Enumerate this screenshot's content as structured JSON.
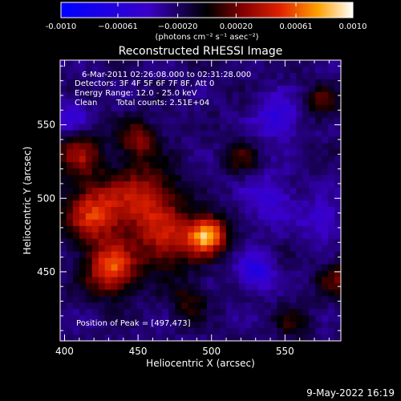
{
  "chart_data": {
    "type": "heatmap",
    "title": "Reconstructed RHESSI Image",
    "xlabel": "Heliocentric X (arcsec)",
    "ylabel": "Heliocentric Y (arcsec)",
    "xlim": [
      397,
      588
    ],
    "ylim": [
      403,
      594
    ],
    "x_ticks": [
      400,
      450,
      500,
      550
    ],
    "y_ticks": [
      450,
      500,
      550
    ],
    "x_tick_labels": [
      "400",
      "450",
      "500",
      "550"
    ],
    "y_tick_labels": [
      "450",
      "500",
      "550"
    ],
    "colorbar": {
      "range": [
        -0.001,
        0.001
      ],
      "ticks": [
        -0.001,
        -0.00061,
        -0.0002,
        0.0002,
        0.00061,
        0.001
      ],
      "tick_labels": [
        "-0.0010",
        "−0.00061",
        "−0.00020",
        "0.00020",
        "0.00061",
        "0.0010"
      ],
      "unit_label": "(photons cm⁻² s⁻¹ asec⁻²)"
    },
    "annotations": {
      "time": "6-Mar-2011 02:26:08.000 to 02:31:28.000",
      "detectors": "Detectors: 3F 4F 5F 6F 7F 8F, Att 0",
      "energy": "Energy Range: 12.0 - 25.0 keV",
      "algorithm": "Clean",
      "counts": "Total counts: 2.51E+04",
      "peak": "Position of Peak = [497,473]"
    },
    "peak": [
      497,
      473
    ],
    "sources": [
      {
        "x": 497,
        "y": 475,
        "amp": 1.0,
        "r": 9
      },
      {
        "x": 432,
        "y": 452,
        "amp": 0.8,
        "r": 12
      },
      {
        "x": 420,
        "y": 490,
        "amp": 0.7,
        "r": 14
      },
      {
        "x": 455,
        "y": 500,
        "amp": 0.6,
        "r": 16
      },
      {
        "x": 470,
        "y": 470,
        "amp": 0.55,
        "r": 14
      },
      {
        "x": 410,
        "y": 530,
        "amp": 0.5,
        "r": 11
      },
      {
        "x": 450,
        "y": 540,
        "amp": 0.45,
        "r": 9
      },
      {
        "x": 520,
        "y": 528,
        "amp": 0.3,
        "r": 8
      },
      {
        "x": 575,
        "y": 565,
        "amp": 0.35,
        "r": 8
      },
      {
        "x": 585,
        "y": 445,
        "amp": 0.35,
        "r": 9
      },
      {
        "x": 555,
        "y": 415,
        "amp": 0.25,
        "r": 8
      },
      {
        "x": 485,
        "y": 430,
        "amp": 0.3,
        "r": 9
      },
      {
        "x": 545,
        "y": 555,
        "amp": -0.35,
        "r": 10
      },
      {
        "x": 530,
        "y": 450,
        "amp": -0.45,
        "r": 8
      },
      {
        "x": 405,
        "y": 555,
        "amp": -0.3,
        "r": 8
      },
      {
        "x": 575,
        "y": 485,
        "amp": -0.25,
        "r": 10
      },
      {
        "x": 540,
        "y": 500,
        "amp": -0.25,
        "r": 12
      }
    ]
  },
  "footer": {
    "date": "9-May-2022 16:19"
  }
}
